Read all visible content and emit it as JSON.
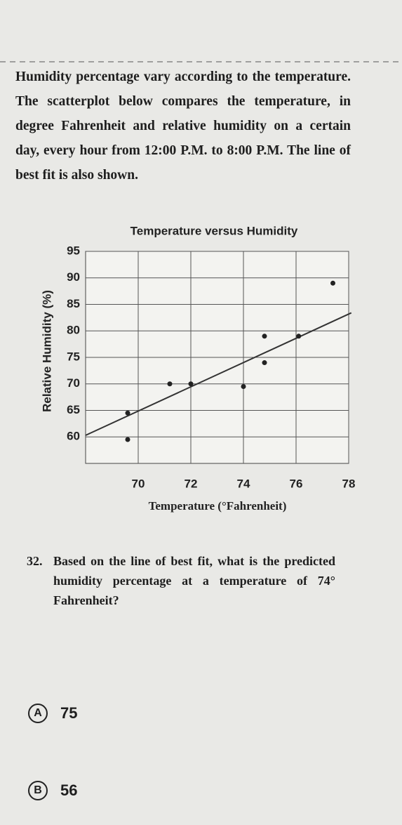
{
  "passage": "Humidity percentage vary according to the temperature. The scatterplot below compares the temperature, in degree Fahrenheit and relative humidity on a certain day, every hour from 12:00 P.M. to 8:00 P.M. The line of best fit is also shown.",
  "chart_data": {
    "type": "scatter",
    "title": "Temperature versus Humidity",
    "x_label": "Temperature (°Fahrenheit)",
    "y_label": "Relative Humidity (%)",
    "x": [
      69.6,
      69.6,
      71.2,
      72,
      74,
      74.8,
      74.8,
      76.1,
      77.4
    ],
    "values": [
      59.5,
      64.5,
      70,
      70,
      69.5,
      74,
      79,
      79,
      89
    ],
    "color": "#222222",
    "fit_line": {
      "x": [
        68,
        78.1
      ],
      "y": [
        60.3,
        83.4
      ]
    },
    "xlim": [
      68,
      78
    ],
    "xticks": [
      70,
      72,
      74,
      76,
      78
    ],
    "ylim": [
      55,
      95
    ],
    "yticks": [
      60,
      65,
      70,
      75,
      80,
      85,
      90,
      95
    ],
    "grid": true
  },
  "question": {
    "number": "32.",
    "text": "Based on the line of best fit, what is the predicted humidity percentage at a temperature of 74° Fahrenheit?"
  },
  "choices": [
    {
      "letter": "A",
      "text": "75"
    },
    {
      "letter": "B",
      "text": "56"
    }
  ]
}
